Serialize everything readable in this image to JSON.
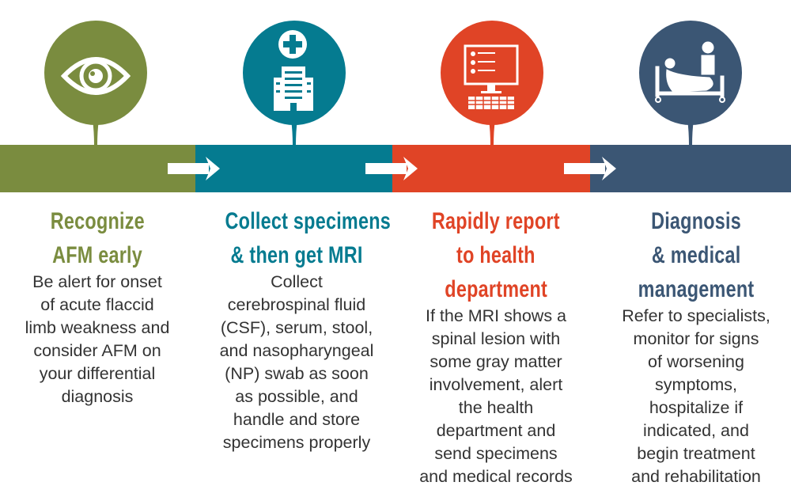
{
  "colors": {
    "step1": "#7a8c3f",
    "step2": "#057b90",
    "step3": "#e04426",
    "step4": "#3b5674"
  },
  "steps": [
    {
      "icon": "eye-icon",
      "title_lines": [
        "Recognize",
        "AFM early"
      ],
      "body": [
        "Be alert for onset",
        "of acute flaccid",
        "limb weakness and",
        "consider AFM on",
        "your differential",
        "diagnosis"
      ]
    },
    {
      "icon": "hospital-icon",
      "title_lines": [
        "Collect specimens",
        "& then get MRI"
      ],
      "body": [
        "Collect",
        "cerebrospinal fluid",
        "(CSF), serum, stool,",
        "and nasopharyngeal",
        "(NP) swab as soon",
        "as possible, and",
        "handle and store",
        "specimens properly"
      ]
    },
    {
      "icon": "computer-checklist-icon",
      "title_lines": [
        "Rapidly report",
        "to health",
        "department"
      ],
      "body": [
        "If the MRI shows a",
        "spinal lesion with",
        "some gray matter",
        "involvement, alert",
        "the health",
        "department and",
        "send specimens",
        "and medical records"
      ]
    },
    {
      "icon": "patient-bed-icon",
      "title_lines": [
        "Diagnosis",
        "& medical",
        "management"
      ],
      "body": [
        "Refer to specialists,",
        "monitor for signs",
        "of worsening",
        "symptoms,",
        "hospitalize if",
        "indicated, and",
        "begin treatment",
        "and rehabilitation"
      ]
    }
  ]
}
